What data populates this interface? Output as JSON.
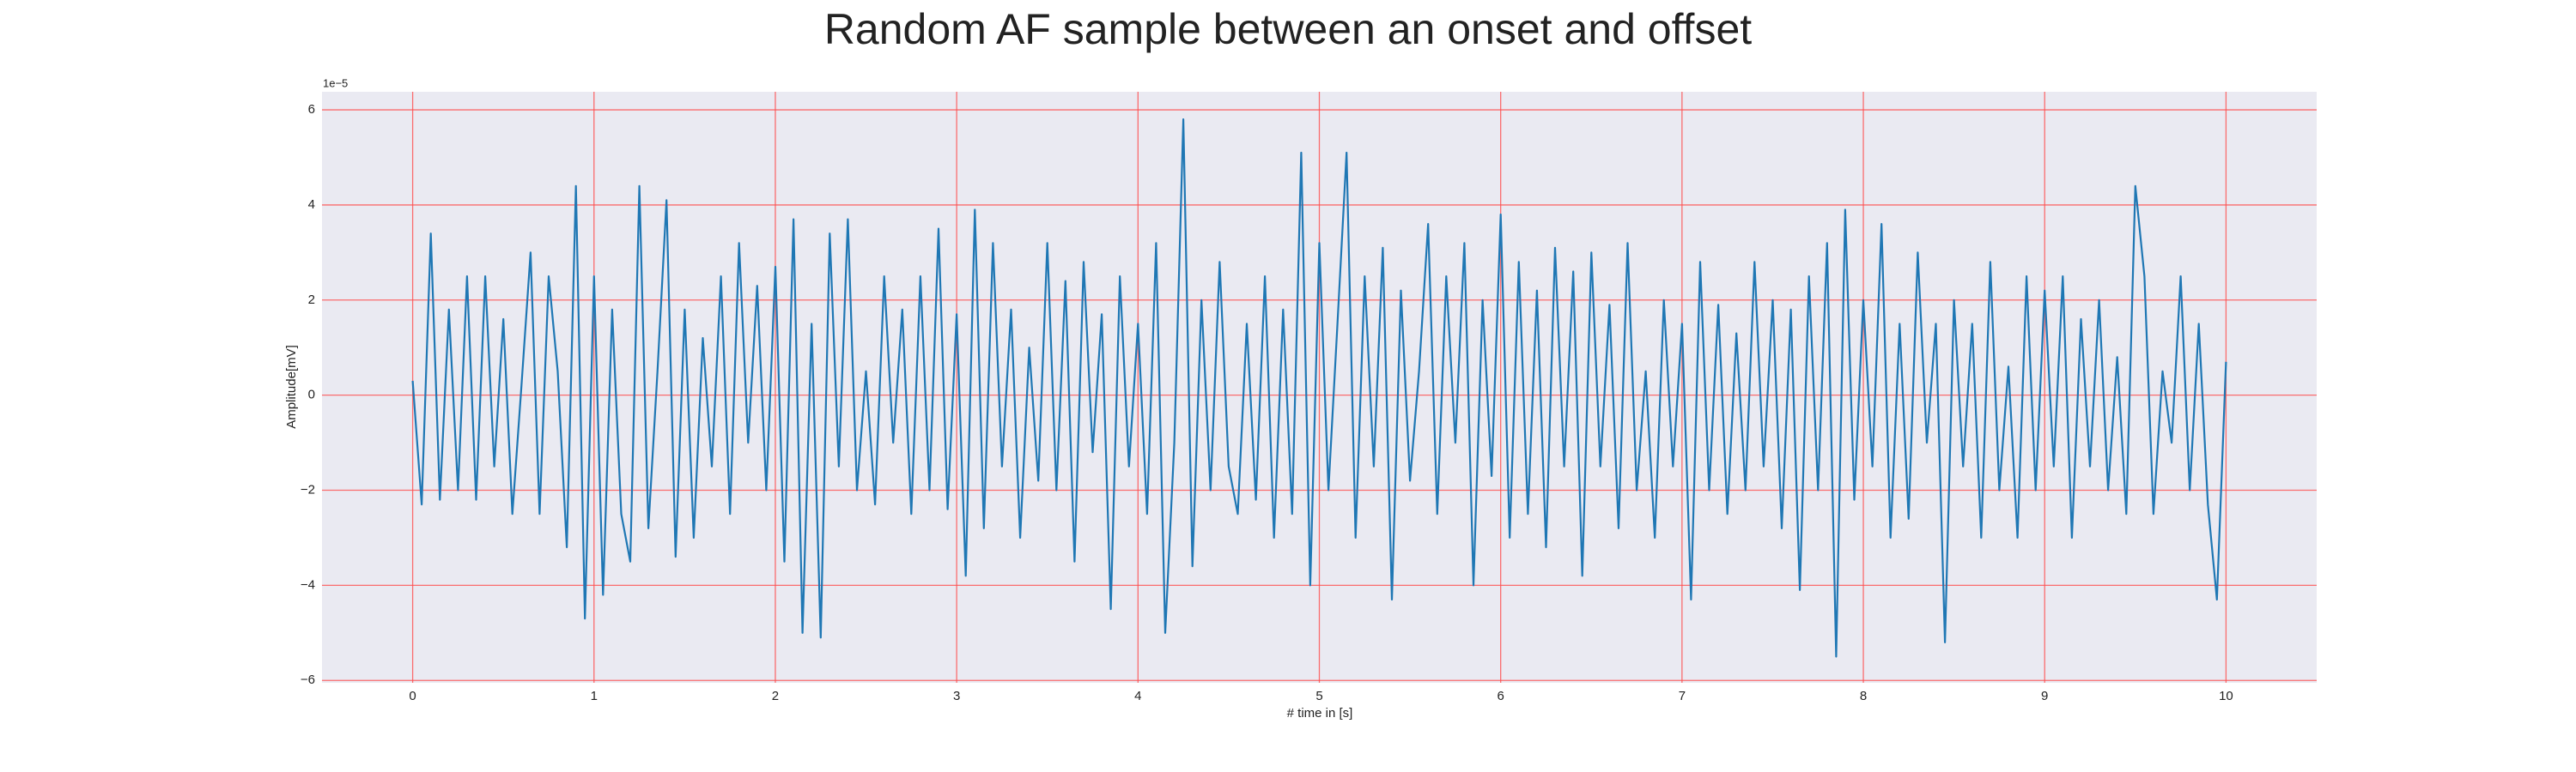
{
  "chart_data": {
    "type": "line",
    "title": "Random AF sample between an onset and offset",
    "xlabel": "# time in [s]",
    "ylabel": "Amplitude[mV]",
    "y_offset_label": "1e−5",
    "grid": true,
    "grid_color": "#ff4d4d",
    "background": "#eaeaf2",
    "xlim": [
      -0.5,
      10.5
    ],
    "ylim": [
      -6.05,
      6.38
    ],
    "xticks": [
      0,
      1,
      2,
      3,
      4,
      5,
      6,
      7,
      8,
      9,
      10
    ],
    "yticks": [
      {
        "value": -6,
        "label": "−6"
      },
      {
        "value": -4,
        "label": "−4"
      },
      {
        "value": -2,
        "label": "−2"
      },
      0,
      2,
      4,
      6
    ],
    "x": [
      0,
      0.05,
      0.1,
      0.15,
      0.2,
      0.25,
      0.3,
      0.35,
      0.4,
      0.45,
      0.5,
      0.55,
      0.6,
      0.65,
      0.7,
      0.75,
      0.8,
      0.85,
      0.9,
      0.95,
      1,
      1.05,
      1.1,
      1.15,
      1.2,
      1.25,
      1.3,
      1.35,
      1.4,
      1.45,
      1.5,
      1.55,
      1.6,
      1.65,
      1.7,
      1.75,
      1.8,
      1.85,
      1.9,
      1.95,
      2,
      2.05,
      2.1,
      2.15,
      2.2,
      2.25,
      2.3,
      2.35,
      2.4,
      2.45,
      2.5,
      2.55,
      2.6,
      2.65,
      2.7,
      2.75,
      2.8,
      2.85,
      2.9,
      2.95,
      3,
      3.05,
      3.1,
      3.15,
      3.2,
      3.25,
      3.3,
      3.35,
      3.4,
      3.45,
      3.5,
      3.55,
      3.6,
      3.65,
      3.7,
      3.75,
      3.8,
      3.85,
      3.9,
      3.95,
      4,
      4.05,
      4.1,
      4.15,
      4.2,
      4.25,
      4.3,
      4.35,
      4.4,
      4.45,
      4.5,
      4.55,
      4.6,
      4.65,
      4.7,
      4.75,
      4.8,
      4.85,
      4.9,
      4.95,
      5,
      5.05,
      5.1,
      5.15,
      5.2,
      5.25,
      5.3,
      5.35,
      5.4,
      5.45,
      5.5,
      5.55,
      5.6,
      5.65,
      5.7,
      5.75,
      5.8,
      5.85,
      5.9,
      5.95,
      6,
      6.05,
      6.1,
      6.15,
      6.2,
      6.25,
      6.3,
      6.35,
      6.4,
      6.45,
      6.5,
      6.55,
      6.6,
      6.65,
      6.7,
      6.75,
      6.8,
      6.85,
      6.9,
      6.95,
      7,
      7.05,
      7.1,
      7.15,
      7.2,
      7.25,
      7.3,
      7.35,
      7.4,
      7.45,
      7.5,
      7.55,
      7.6,
      7.65,
      7.7,
      7.75,
      7.8,
      7.85,
      7.9,
      7.95,
      8,
      8.05,
      8.1,
      8.15,
      8.2,
      8.25,
      8.3,
      8.35,
      8.4,
      8.45,
      8.5,
      8.55,
      8.6,
      8.65,
      8.7,
      8.75,
      8.8,
      8.85,
      8.9,
      8.95,
      9,
      9.05,
      9.1,
      9.15,
      9.2,
      9.25,
      9.3,
      9.35,
      9.4,
      9.45,
      9.5,
      9.55,
      9.6,
      9.65,
      9.7,
      9.75,
      9.8,
      9.85,
      9.9,
      9.95,
      10
    ],
    "series": [
      {
        "color": "#1f77b4",
        "values": [
          0.3,
          -2.3,
          3.4,
          -2.2,
          1.8,
          -2.0,
          2.5,
          -2.2,
          2.5,
          -1.5,
          1.6,
          -2.5,
          0.2,
          3.0,
          -2.5,
          2.5,
          0.5,
          -3.2,
          4.4,
          -4.7,
          2.5,
          -4.2,
          1.8,
          -2.5,
          -3.5,
          4.4,
          -2.8,
          0.5,
          4.1,
          -3.4,
          1.8,
          -3.0,
          1.2,
          -1.5,
          2.5,
          -2.5,
          3.2,
          -1.0,
          2.3,
          -2.0,
          2.7,
          -3.5,
          3.7,
          -5.0,
          1.5,
          -5.1,
          3.4,
          -1.5,
          3.7,
          -2.0,
          0.5,
          -2.3,
          2.5,
          -1.0,
          1.8,
          -2.5,
          2.5,
          -2.0,
          3.5,
          -2.4,
          1.7,
          -3.8,
          3.9,
          -2.8,
          3.2,
          -1.5,
          1.8,
          -3.0,
          1.0,
          -1.8,
          3.2,
          -2.0,
          2.4,
          -3.5,
          2.8,
          -1.2,
          1.7,
          -4.5,
          2.5,
          -1.5,
          1.5,
          -2.5,
          3.2,
          -5.0,
          -1.0,
          5.8,
          -3.6,
          2.0,
          -2.0,
          2.8,
          -1.5,
          -2.5,
          1.5,
          -2.2,
          2.5,
          -3.0,
          1.8,
          -2.5,
          5.1,
          -4.0,
          3.2,
          -2.0,
          1.5,
          5.1,
          -3.0,
          2.5,
          -1.5,
          3.1,
          -4.3,
          2.2,
          -1.8,
          0.5,
          3.6,
          -2.5,
          2.5,
          -1.0,
          3.2,
          -4.0,
          2.0,
          -1.7,
          3.8,
          -3.0,
          2.8,
          -2.5,
          2.2,
          -3.2,
          3.1,
          -1.5,
          2.6,
          -3.8,
          3.0,
          -1.5,
          1.9,
          -2.8,
          3.2,
          -2.0,
          0.5,
          -3.0,
          2.0,
          -1.5,
          1.5,
          -4.3,
          2.8,
          -2.0,
          1.9,
          -2.5,
          1.3,
          -2.0,
          2.8,
          -1.5,
          2.0,
          -2.8,
          1.8,
          -4.1,
          2.5,
          -2.0,
          3.2,
          -5.5,
          3.9,
          -2.2,
          2.0,
          -1.5,
          3.6,
          -3.0,
          1.5,
          -2.6,
          3.0,
          -1.0,
          1.5,
          -5.2,
          2.0,
          -1.5,
          1.5,
          -3.0,
          2.8,
          -2.0,
          0.6,
          -3.0,
          2.5,
          -2.0,
          2.2,
          -1.5,
          2.5,
          -3.0,
          1.6,
          -1.5,
          2.0,
          -2.0,
          0.8,
          -2.5,
          4.4,
          2.5,
          -2.5,
          0.5,
          -1.0,
          2.5,
          -2.0,
          1.5,
          -2.3,
          -4.3,
          0.7
        ]
      }
    ]
  }
}
